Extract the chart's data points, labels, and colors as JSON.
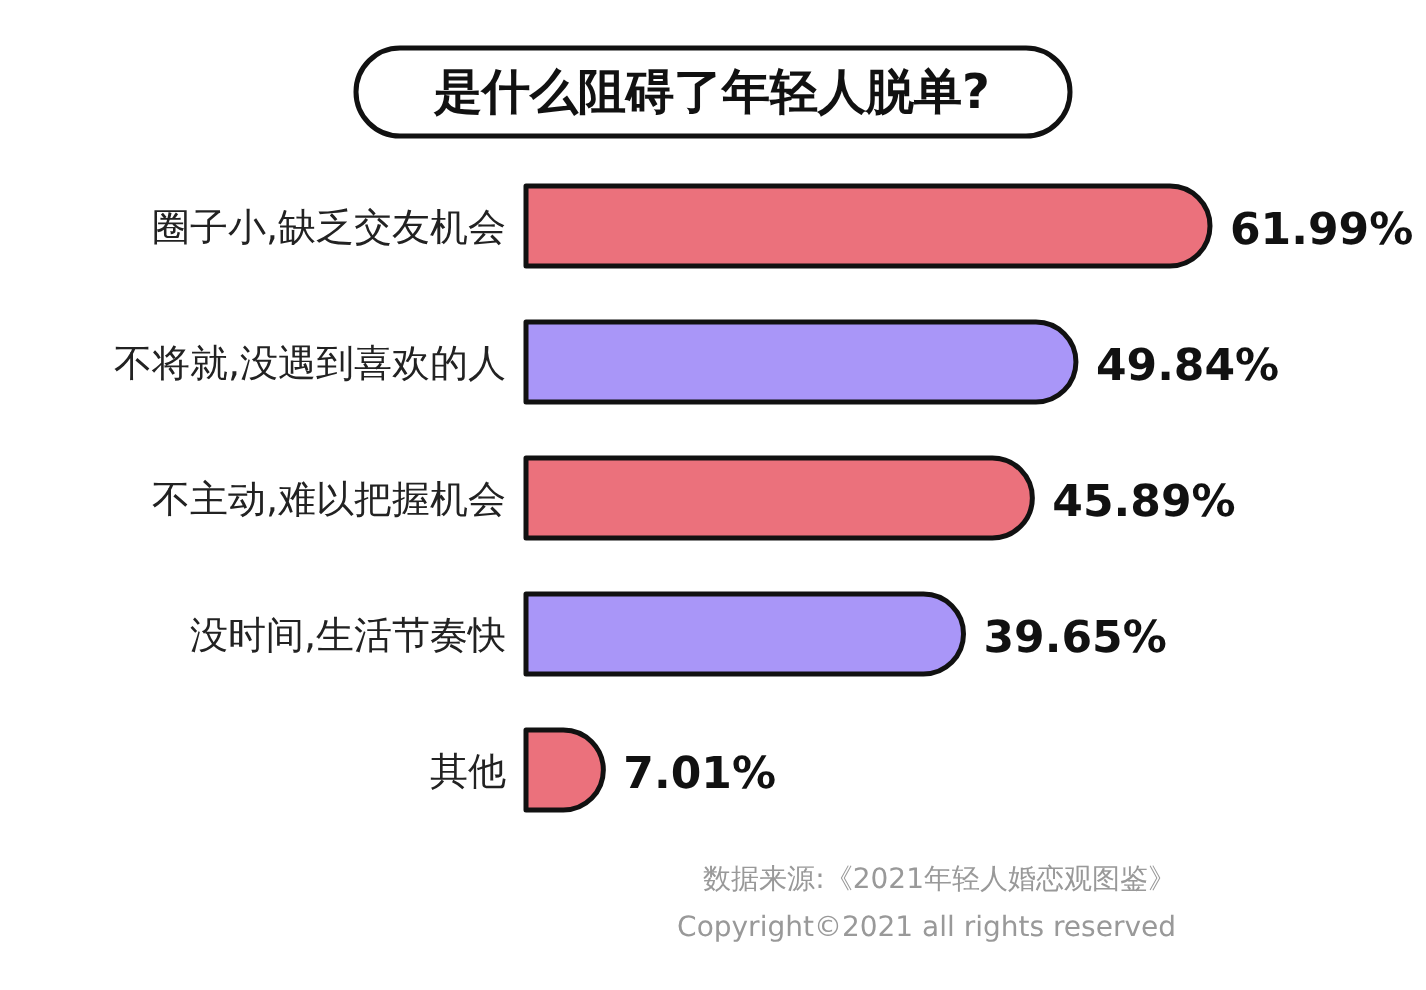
{
  "chart_data": {
    "type": "bar",
    "orientation": "horizontal",
    "title": "是什么阻碍了年轻人脱单?",
    "categories": [
      "圈子小,缺乏交友机会",
      "不将就,没遇到喜欢的人",
      "不主动,难以把握机会",
      "没时间,生活节奏快",
      "其他"
    ],
    "values": [
      61.99,
      49.84,
      45.89,
      39.65,
      7.01
    ],
    "value_labels": [
      "61.99%",
      "49.84%",
      "45.89%",
      "39.65%",
      "7.01%"
    ],
    "colors": [
      "#eb717c",
      "#a996f8",
      "#eb717c",
      "#a996f8",
      "#eb717c"
    ],
    "annotations": [
      "数据来源:《2021年轻人婚恋观图鉴》",
      "Copyright©2021 all rights reserved"
    ]
  }
}
